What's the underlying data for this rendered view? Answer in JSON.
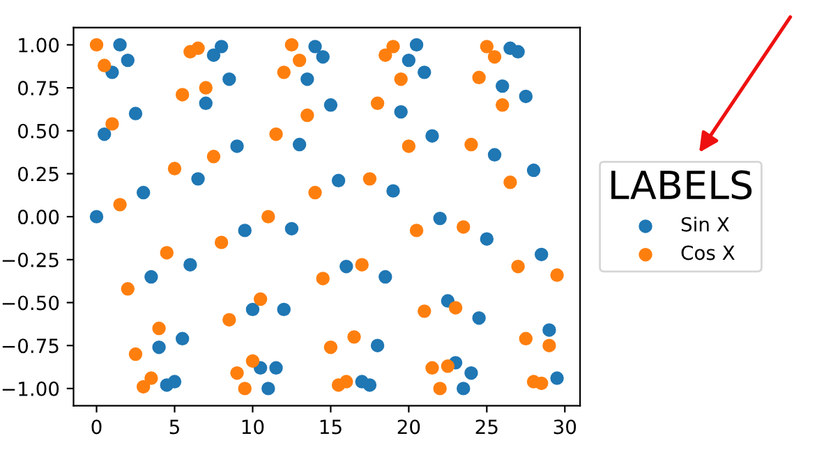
{
  "chart_data": {
    "type": "scatter",
    "x": [
      0,
      0.5,
      1,
      1.5,
      2,
      2.5,
      3,
      3.5,
      4,
      4.5,
      5,
      5.5,
      6,
      6.5,
      7,
      7.5,
      8,
      8.5,
      9,
      9.5,
      10,
      10.5,
      11,
      11.5,
      12,
      12.5,
      13,
      13.5,
      14,
      14.5,
      15,
      15.5,
      16,
      16.5,
      17,
      17.5,
      18,
      18.5,
      19,
      19.5,
      20,
      20.5,
      21,
      21.5,
      22,
      22.5,
      23,
      23.5,
      24,
      24.5,
      25,
      25.5,
      26,
      26.5,
      27,
      27.5,
      28,
      28.5,
      29,
      29.5
    ],
    "series": [
      {
        "name": "Sin X",
        "color": "#1f77b4",
        "values": [
          0,
          0.48,
          0.84,
          1.0,
          0.91,
          0.6,
          0.14,
          -0.35,
          -0.76,
          -0.98,
          -0.96,
          -0.71,
          -0.28,
          0.22,
          0.66,
          0.94,
          0.99,
          0.8,
          0.41,
          -0.08,
          -0.54,
          -0.88,
          -1.0,
          -0.88,
          -0.54,
          -0.07,
          0.42,
          0.8,
          0.99,
          0.93,
          0.65,
          0.21,
          -0.29,
          null,
          -0.96,
          -0.98,
          -0.75,
          -0.35,
          0.15,
          0.61,
          0.91,
          1.0,
          0.84,
          0.47,
          -0.01,
          -0.49,
          -0.85,
          -1.0,
          -0.91,
          -0.59,
          -0.13,
          0.36,
          0.76,
          0.98,
          0.96,
          0.7,
          0.27,
          -0.22,
          -0.66,
          -0.94
        ]
      },
      {
        "name": "Cos X",
        "color": "#ff7f0e",
        "values": [
          1.0,
          0.88,
          0.54,
          0.07,
          -0.42,
          -0.8,
          -0.99,
          -0.94,
          -0.65,
          -0.21,
          0.28,
          0.71,
          0.96,
          0.98,
          0.75,
          0.35,
          -0.15,
          -0.6,
          -0.91,
          -1.0,
          -0.84,
          -0.48,
          0.0,
          0.48,
          0.84,
          1.0,
          0.91,
          0.59,
          0.14,
          -0.36,
          -0.76,
          -0.98,
          -0.96,
          -0.7,
          -0.28,
          0.22,
          0.66,
          0.94,
          0.99,
          0.8,
          0.41,
          -0.08,
          -0.55,
          -0.88,
          -1.0,
          -0.87,
          -0.53,
          -0.06,
          0.42,
          0.81,
          0.99,
          0.93,
          0.65,
          0.2,
          -0.29,
          -0.71,
          -0.96,
          -0.97,
          -0.75,
          -0.34
        ]
      }
    ],
    "xlim": [
      -1.475,
      30.975
    ],
    "ylim": [
      -1.1,
      1.1
    ],
    "xticks": [
      0,
      5,
      10,
      15,
      20,
      25,
      30
    ],
    "yticks": [
      {
        "value": -1,
        "label": "−1.00"
      },
      {
        "value": -0.75,
        "label": "−0.75"
      },
      {
        "value": -0.5,
        "label": "−0.50"
      },
      {
        "value": -0.25,
        "label": "−0.25"
      },
      {
        "value": 0,
        "label": "0.00"
      },
      {
        "value": 0.25,
        "label": "0.25"
      },
      {
        "value": 0.5,
        "label": "0.50"
      },
      {
        "value": 0.75,
        "label": "0.75"
      },
      {
        "value": 1,
        "label": "1.00"
      }
    ],
    "legend_title": "LABELS",
    "legend": "right",
    "marker": "circle",
    "grid": false
  }
}
